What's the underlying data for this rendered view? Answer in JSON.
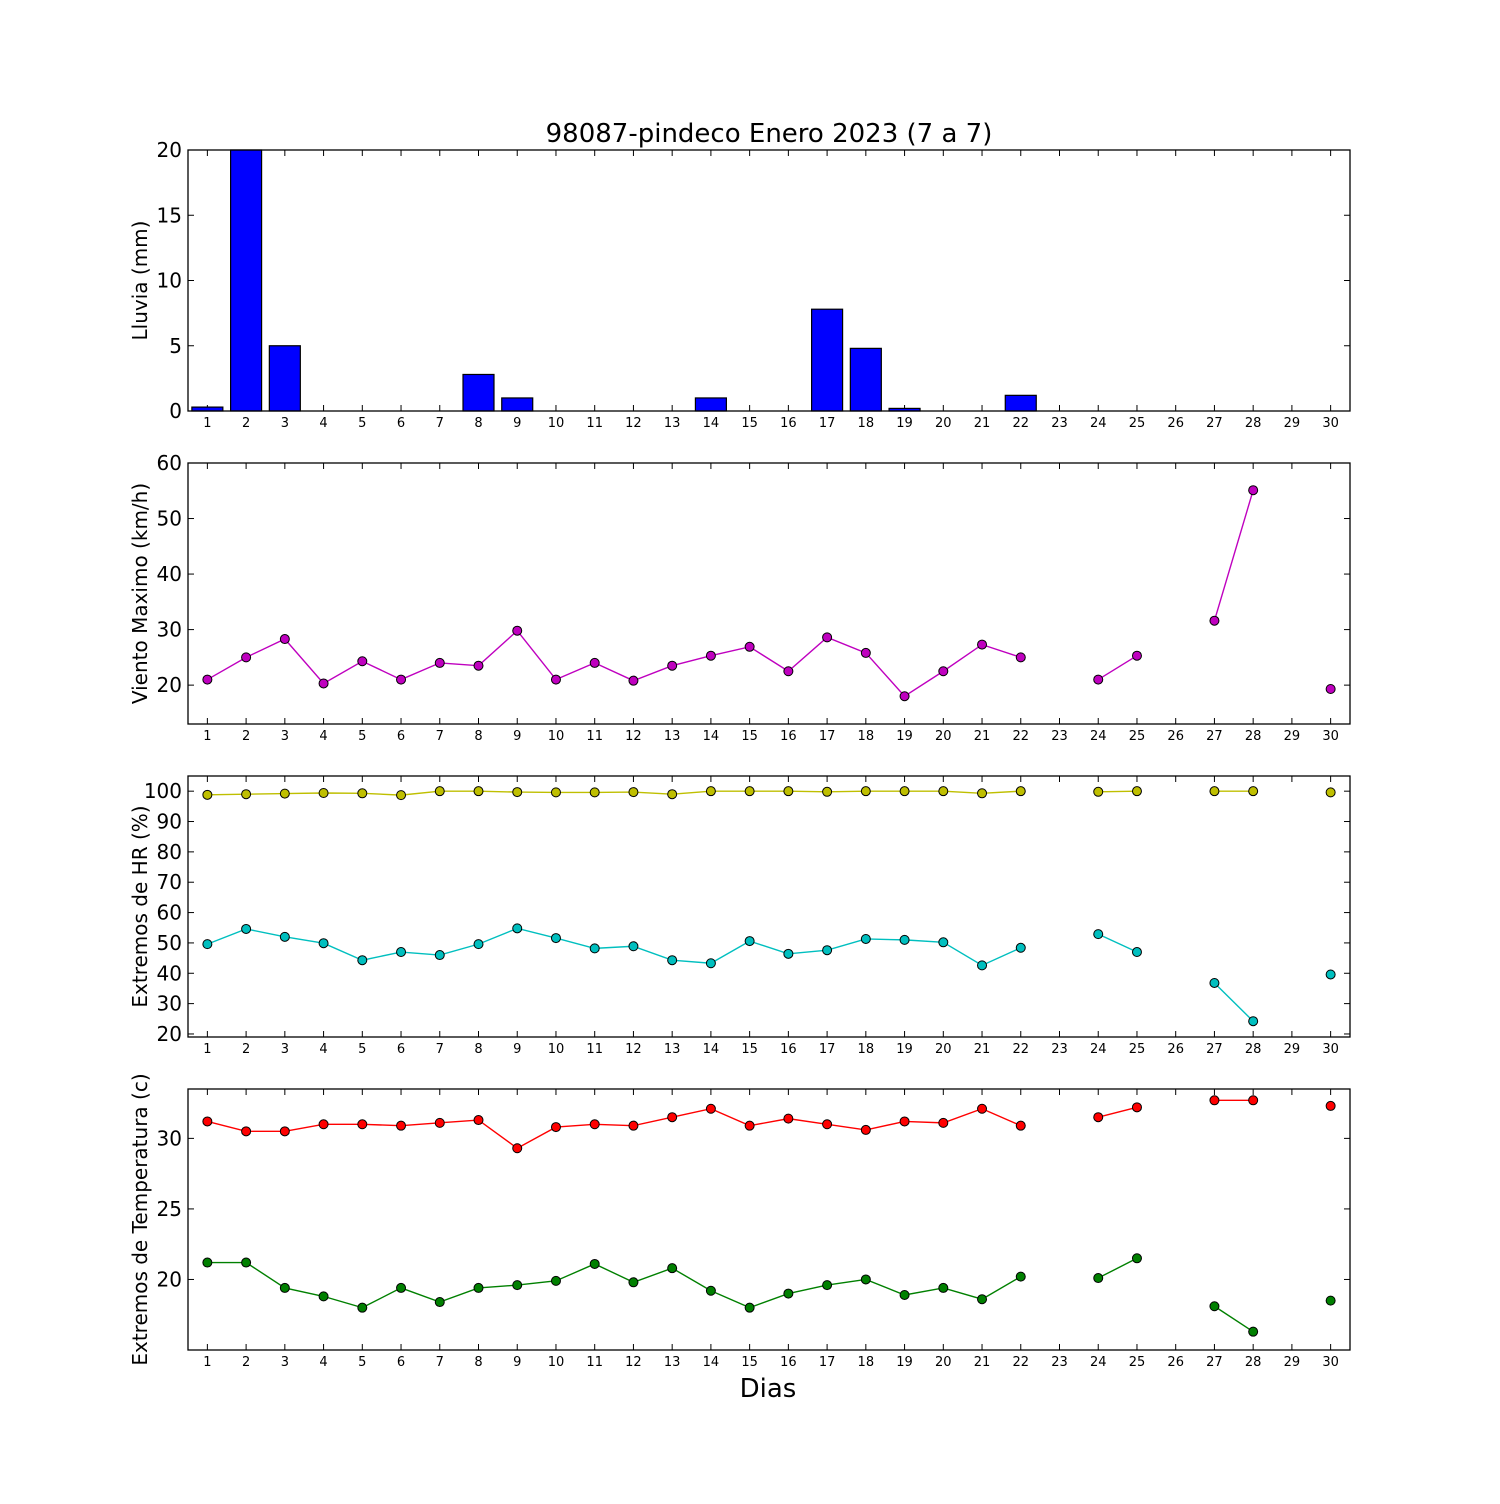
{
  "title": "98087-pindeco Enero 2023  (7 a 7)",
  "xlabel": "Dias",
  "colors": {
    "rain": "#0000ff",
    "wind": "#bf00bf",
    "hr_max": "#bfbf00",
    "hr_min": "#00bfbf",
    "temp_max": "#ff0000",
    "temp_min": "#008000"
  },
  "chart_data": [
    {
      "type": "bar",
      "ylabel": "Lluvia (mm)",
      "ylim": [
        0,
        20
      ],
      "yticks": [
        0,
        5,
        10,
        15,
        20
      ],
      "categories": [
        1,
        2,
        3,
        4,
        5,
        6,
        7,
        8,
        9,
        10,
        11,
        12,
        13,
        14,
        15,
        16,
        17,
        18,
        19,
        20,
        21,
        22,
        23,
        24,
        25,
        26,
        27,
        28,
        29,
        30
      ],
      "values": [
        0.3,
        20,
        5,
        0,
        0,
        0,
        0,
        2.8,
        1,
        0,
        0,
        0,
        0,
        1,
        0,
        0,
        7.8,
        4.8,
        0.2,
        0,
        0,
        1.2,
        null,
        0,
        0,
        0,
        0,
        0,
        0,
        0
      ]
    },
    {
      "type": "line",
      "ylabel": "Viento Maximo (km/h)",
      "ylim": [
        13,
        60
      ],
      "yticks": [
        20,
        30,
        40,
        50,
        60
      ],
      "x": [
        1,
        2,
        3,
        4,
        5,
        6,
        7,
        8,
        9,
        10,
        11,
        12,
        13,
        14,
        15,
        16,
        17,
        18,
        19,
        20,
        21,
        22,
        23,
        24,
        25,
        26,
        27,
        28,
        29,
        30
      ],
      "series": [
        {
          "values": [
            21,
            25,
            28.3,
            20.3,
            24.3,
            21,
            24,
            23.5,
            29.8,
            21,
            24,
            20.8,
            23.5,
            25.3,
            26.9,
            22.5,
            28.6,
            25.8,
            18,
            22.5,
            27.3,
            25,
            null,
            21,
            25.3,
            null,
            31.6,
            55.1,
            null,
            19.3
          ]
        }
      ]
    },
    {
      "type": "line",
      "ylabel": "Extremos de HR (%)",
      "ylim": [
        19,
        105
      ],
      "yticks": [
        20,
        30,
        40,
        50,
        60,
        70,
        80,
        90,
        100
      ],
      "x": [
        1,
        2,
        3,
        4,
        5,
        6,
        7,
        8,
        9,
        10,
        11,
        12,
        13,
        14,
        15,
        16,
        17,
        18,
        19,
        20,
        21,
        22,
        23,
        24,
        25,
        26,
        27,
        28,
        29,
        30
      ],
      "series": [
        {
          "values": [
            98.8,
            99,
            99.2,
            99.4,
            99.3,
            98.7,
            100,
            100,
            99.7,
            99.6,
            99.6,
            99.7,
            99,
            100,
            100,
            100,
            99.8,
            100,
            100,
            100,
            99.3,
            100,
            null,
            99.8,
            100,
            null,
            100,
            100,
            null,
            99.6
          ]
        },
        {
          "values": [
            49.6,
            54.6,
            52,
            49.9,
            44.3,
            47,
            46,
            49.6,
            54.8,
            51.6,
            48.2,
            48.9,
            44.3,
            43.3,
            50.6,
            46.4,
            47.6,
            51.3,
            51,
            50.2,
            42.6,
            48.4,
            null,
            52.9,
            47,
            null,
            36.8,
            24.2,
            null,
            39.6
          ]
        }
      ]
    },
    {
      "type": "line",
      "ylabel": "Extremos de Temperatura (c)",
      "ylim": [
        15,
        33.5
      ],
      "yticks": [
        20,
        25,
        30
      ],
      "x": [
        1,
        2,
        3,
        4,
        5,
        6,
        7,
        8,
        9,
        10,
        11,
        12,
        13,
        14,
        15,
        16,
        17,
        18,
        19,
        20,
        21,
        22,
        23,
        24,
        25,
        26,
        27,
        28,
        29,
        30
      ],
      "series": [
        {
          "values": [
            31.2,
            30.5,
            30.5,
            31,
            31,
            30.9,
            31.1,
            31.3,
            29.3,
            30.8,
            31,
            30.9,
            31.5,
            32.1,
            30.9,
            31.4,
            31,
            30.6,
            31.2,
            31.1,
            32.1,
            30.9,
            null,
            31.5,
            32.2,
            null,
            32.7,
            32.7,
            null,
            32.3
          ]
        },
        {
          "values": [
            21.2,
            21.2,
            19.4,
            18.8,
            18,
            19.4,
            18.4,
            19.4,
            19.6,
            19.9,
            21.1,
            19.8,
            20.8,
            19.2,
            18,
            19,
            19.6,
            20,
            18.9,
            19.4,
            18.6,
            20.2,
            null,
            20.1,
            21.5,
            null,
            18.1,
            16.3,
            null,
            18.5
          ]
        }
      ]
    }
  ]
}
